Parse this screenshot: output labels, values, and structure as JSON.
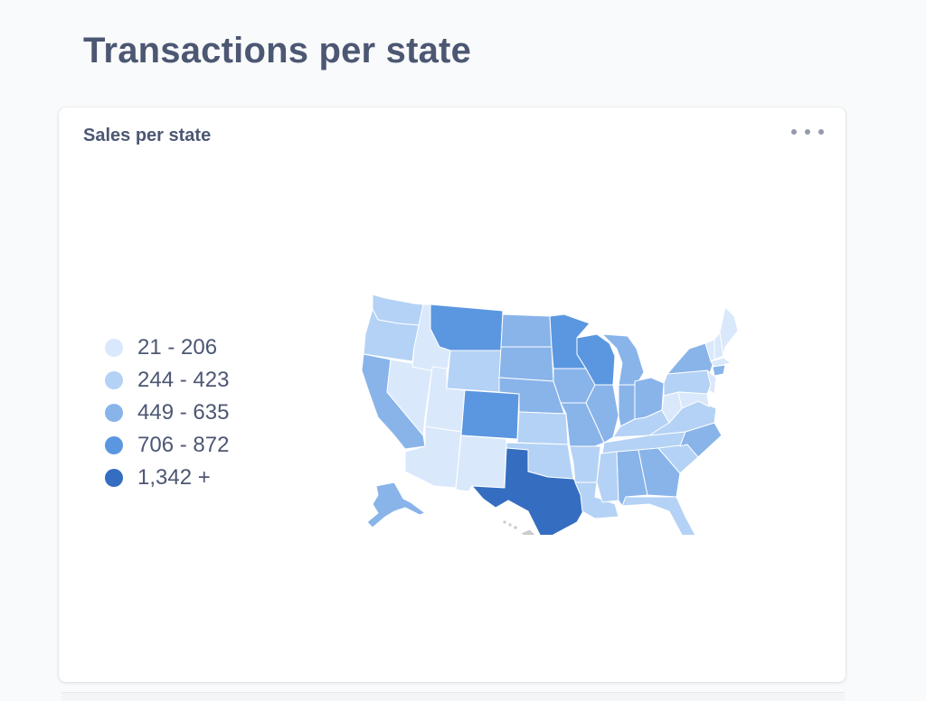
{
  "page": {
    "title": "Transactions per state"
  },
  "card": {
    "title": "Sales per state",
    "menu_icon": "ellipsis-icon"
  },
  "legend": [
    {
      "label": "21 - 206",
      "color": "#d9e8fb"
    },
    {
      "label": "244 - 423",
      "color": "#b4d2f5"
    },
    {
      "label": "449 - 635",
      "color": "#89b4ea"
    },
    {
      "label": "706 - 872",
      "color": "#5b97e0"
    },
    {
      "label": "1,342 +",
      "color": "#356ec0"
    }
  ],
  "colors": {
    "no_data": "#cccccc",
    "state_border": "#ffffff"
  }
}
